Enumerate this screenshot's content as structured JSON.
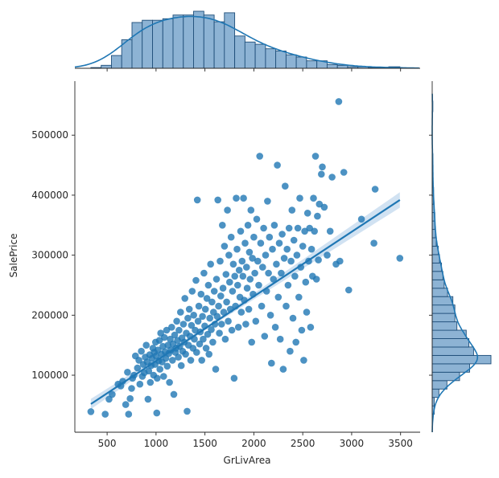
{
  "chart_data": {
    "type": "scatter",
    "xlabel": "GrLivArea",
    "ylabel": "SalePrice",
    "xlim": [
      170,
      3700
    ],
    "ylim": [
      5000,
      590000
    ],
    "x_ticks": [
      500,
      1000,
      1500,
      2000,
      2500,
      3000,
      3500
    ],
    "y_ticks": [
      100000,
      200000,
      300000,
      400000,
      500000
    ],
    "x_tick_labels": [
      "500",
      "1000",
      "1500",
      "2000",
      "2500",
      "3000",
      "3500"
    ],
    "y_tick_labels": [
      "100000",
      "200000",
      "300000",
      "400000",
      "500000"
    ],
    "colors": {
      "points": "#1f77b4",
      "hist_fill": "#8db3d4",
      "hist_edge": "#1f4e79",
      "band": "#c6dbef"
    },
    "regression_line": {
      "x": [
        334,
        3493
      ],
      "y": [
        52000,
        392000
      ]
    },
    "grid": false,
    "legend": "none",
    "x_hist": {
      "bin_edges": [
        334,
        439,
        544,
        649,
        754,
        859,
        964,
        1069,
        1174,
        1279,
        1384,
        1489,
        1594,
        1699,
        1804,
        1909,
        2014,
        2119,
        2224,
        2329,
        2434,
        2539,
        2644,
        2749,
        2854,
        2959,
        3064,
        3169,
        3274,
        3379,
        3493
      ],
      "counts": [
        1,
        4,
        17,
        38,
        61,
        64,
        64,
        66,
        71,
        71,
        76,
        71,
        62,
        74,
        43,
        35,
        32,
        26,
        23,
        18,
        15,
        10,
        10,
        5,
        4,
        2,
        2,
        1,
        1,
        2
      ]
    },
    "y_hist": {
      "bin_edges": [
        34900,
        49000,
        63000,
        77000,
        91000,
        105000,
        119000,
        133000,
        147000,
        161000,
        175000,
        189000,
        203000,
        217000,
        231000,
        245000,
        259000,
        273000,
        287000,
        301000,
        315000,
        329000,
        343000,
        357000,
        371000,
        385000,
        399000,
        413000,
        427000,
        441000,
        455000,
        469000,
        483000,
        497000,
        511000,
        525000,
        539000,
        557000
      ],
      "counts": [
        3,
        3,
        10,
        22,
        41,
        56,
        88,
        62,
        55,
        51,
        37,
        34,
        34,
        31,
        23,
        18,
        16,
        14,
        11,
        9,
        6,
        5,
        4,
        4,
        3,
        2,
        2,
        1,
        1,
        1,
        1,
        0,
        0,
        0,
        0,
        0,
        1
      ]
    },
    "points": [
      [
        334,
        39300
      ],
      [
        480,
        35000
      ],
      [
        520,
        60000
      ],
      [
        552,
        68000
      ],
      [
        612,
        85000
      ],
      [
        640,
        82000
      ],
      [
        660,
        90000
      ],
      [
        690,
        51000
      ],
      [
        708,
        105000
      ],
      [
        720,
        35000
      ],
      [
        735,
        61000
      ],
      [
        750,
        78000
      ],
      [
        760,
        95000
      ],
      [
        775,
        100000
      ],
      [
        790,
        132000
      ],
      [
        810,
        112000
      ],
      [
        825,
        125000
      ],
      [
        835,
        85000
      ],
      [
        850,
        140000
      ],
      [
        860,
        98000
      ],
      [
        870,
        118000
      ],
      [
        880,
        104000
      ],
      [
        890,
        130000
      ],
      [
        900,
        150000
      ],
      [
        910,
        122000
      ],
      [
        918,
        60000
      ],
      [
        925,
        107000
      ],
      [
        935,
        134000
      ],
      [
        942,
        88000
      ],
      [
        950,
        116000
      ],
      [
        960,
        128000
      ],
      [
        968,
        145000
      ],
      [
        975,
        100000
      ],
      [
        982,
        138000
      ],
      [
        990,
        118000
      ],
      [
        995,
        155000
      ],
      [
        1000,
        132000
      ],
      [
        1008,
        37000
      ],
      [
        1012,
        95000
      ],
      [
        1020,
        142000
      ],
      [
        1028,
        124000
      ],
      [
        1035,
        158000
      ],
      [
        1040,
        110000
      ],
      [
        1048,
        170000
      ],
      [
        1055,
        135000
      ],
      [
        1062,
        122000
      ],
      [
        1070,
        148000
      ],
      [
        1078,
        98000
      ],
      [
        1085,
        163000
      ],
      [
        1092,
        139000
      ],
      [
        1100,
        128000
      ],
      [
        1108,
        175000
      ],
      [
        1115,
        115000
      ],
      [
        1122,
        150000
      ],
      [
        1130,
        136000
      ],
      [
        1138,
        88000
      ],
      [
        1145,
        160000
      ],
      [
        1152,
        142000
      ],
      [
        1160,
        180000
      ],
      [
        1168,
        125000
      ],
      [
        1175,
        152000
      ],
      [
        1182,
        68000
      ],
      [
        1190,
        167000
      ],
      [
        1198,
        138000
      ],
      [
        1205,
        145000
      ],
      [
        1212,
        190000
      ],
      [
        1220,
        158000
      ],
      [
        1228,
        130000
      ],
      [
        1235,
        175000
      ],
      [
        1242,
        148000
      ],
      [
        1250,
        205000
      ],
      [
        1258,
        116000
      ],
      [
        1265,
        162000
      ],
      [
        1272,
        140000
      ],
      [
        1280,
        185000
      ],
      [
        1288,
        155000
      ],
      [
        1295,
        228000
      ],
      [
        1302,
        135000
      ],
      [
        1310,
        170000
      ],
      [
        1318,
        40000
      ],
      [
        1325,
        195000
      ],
      [
        1332,
        150000
      ],
      [
        1340,
        210000
      ],
      [
        1348,
        165000
      ],
      [
        1355,
        125000
      ],
      [
        1362,
        183000
      ],
      [
        1370,
        240000
      ],
      [
        1378,
        145000
      ],
      [
        1385,
        200000
      ],
      [
        1392,
        160000
      ],
      [
        1400,
        175000
      ],
      [
        1408,
        258000
      ],
      [
        1415,
        138000
      ],
      [
        1422,
        392000
      ],
      [
        1430,
        190000
      ],
      [
        1438,
        215000
      ],
      [
        1445,
        152000
      ],
      [
        1452,
        172000
      ],
      [
        1460,
        235000
      ],
      [
        1468,
        125000
      ],
      [
        1475,
        198000
      ],
      [
        1482,
        160000
      ],
      [
        1490,
        270000
      ],
      [
        1498,
        182000
      ],
      [
        1505,
        210000
      ],
      [
        1512,
        145000
      ],
      [
        1520,
        228000
      ],
      [
        1528,
        168000
      ],
      [
        1535,
        250000
      ],
      [
        1542,
        135000
      ],
      [
        1550,
        195000
      ],
      [
        1558,
        285000
      ],
      [
        1565,
        176000
      ],
      [
        1572,
        222000
      ],
      [
        1580,
        155000
      ],
      [
        1588,
        205000
      ],
      [
        1595,
        240000
      ],
      [
        1602,
        185000
      ],
      [
        1610,
        110000
      ],
      [
        1618,
        260000
      ],
      [
        1625,
        198000
      ],
      [
        1632,
        392000
      ],
      [
        1640,
        215000
      ],
      [
        1648,
        170000
      ],
      [
        1655,
        290000
      ],
      [
        1662,
        232000
      ],
      [
        1670,
        185000
      ],
      [
        1678,
        350000
      ],
      [
        1685,
        245000
      ],
      [
        1692,
        205000
      ],
      [
        1700,
        315000
      ],
      [
        1708,
        160000
      ],
      [
        1715,
        268000
      ],
      [
        1722,
        222000
      ],
      [
        1730,
        375000
      ],
      [
        1738,
        190000
      ],
      [
        1745,
        300000
      ],
      [
        1752,
        255000
      ],
      [
        1760,
        210000
      ],
      [
        1768,
        330000
      ],
      [
        1775,
        175000
      ],
      [
        1782,
        240000
      ],
      [
        1790,
        285000
      ],
      [
        1798,
        95000
      ],
      [
        1805,
        265000
      ],
      [
        1812,
        215000
      ],
      [
        1820,
        395000
      ],
      [
        1828,
        310000
      ],
      [
        1835,
        250000
      ],
      [
        1842,
        180000
      ],
      [
        1850,
        275000
      ],
      [
        1858,
        230000
      ],
      [
        1865,
        340000
      ],
      [
        1872,
        205000
      ],
      [
        1880,
        290000
      ],
      [
        1888,
        265000
      ],
      [
        1895,
        395000
      ],
      [
        1902,
        225000
      ],
      [
        1910,
        320000
      ],
      [
        1918,
        185000
      ],
      [
        1925,
        280000
      ],
      [
        1932,
        245000
      ],
      [
        1940,
        350000
      ],
      [
        1948,
        210000
      ],
      [
        1955,
        305000
      ],
      [
        1962,
        260000
      ],
      [
        1970,
        375000
      ],
      [
        1978,
        155000
      ],
      [
        1985,
        295000
      ],
      [
        1992,
        235000
      ],
      [
        2000,
        330000
      ],
      [
        2010,
        270000
      ],
      [
        2020,
        190000
      ],
      [
        2030,
        360000
      ],
      [
        2040,
        290000
      ],
      [
        2050,
        250000
      ],
      [
        2060,
        465000
      ],
      [
        2070,
        320000
      ],
      [
        2080,
        215000
      ],
      [
        2090,
        280000
      ],
      [
        2100,
        345000
      ],
      [
        2110,
        165000
      ],
      [
        2120,
        300000
      ],
      [
        2130,
        240000
      ],
      [
        2140,
        390000
      ],
      [
        2150,
        270000
      ],
      [
        2160,
        330000
      ],
      [
        2170,
        200000
      ],
      [
        2180,
        120000
      ],
      [
        2190,
        310000
      ],
      [
        2200,
        260000
      ],
      [
        2210,
        350000
      ],
      [
        2220,
        180000
      ],
      [
        2230,
        285000
      ],
      [
        2240,
        450000
      ],
      [
        2250,
        230000
      ],
      [
        2260,
        320000
      ],
      [
        2270,
        160000
      ],
      [
        2280,
        270000
      ],
      [
        2290,
        335000
      ],
      [
        2300,
        110000
      ],
      [
        2310,
        295000
      ],
      [
        2320,
        415000
      ],
      [
        2330,
        215000
      ],
      [
        2340,
        310000
      ],
      [
        2350,
        250000
      ],
      [
        2360,
        345000
      ],
      [
        2370,
        140000
      ],
      [
        2380,
        290000
      ],
      [
        2390,
        375000
      ],
      [
        2400,
        195000
      ],
      [
        2410,
        325000
      ],
      [
        2420,
        265000
      ],
      [
        2430,
        155000
      ],
      [
        2440,
        300000
      ],
      [
        2450,
        345000
      ],
      [
        2460,
        230000
      ],
      [
        2470,
        395000
      ],
      [
        2480,
        280000
      ],
      [
        2490,
        175000
      ],
      [
        2500,
        315000
      ],
      [
        2510,
        125000
      ],
      [
        2520,
        340000
      ],
      [
        2530,
        255000
      ],
      [
        2540,
        205000
      ],
      [
        2550,
        370000
      ],
      [
        2560,
        290000
      ],
      [
        2570,
        345000
      ],
      [
        2580,
        180000
      ],
      [
        2590,
        310000
      ],
      [
        2600,
        265000
      ],
      [
        2610,
        395000
      ],
      [
        2620,
        340000
      ],
      [
        2630,
        465000
      ],
      [
        2640,
        260000
      ],
      [
        2650,
        365000
      ],
      [
        2660,
        292000
      ],
      [
        2670,
        385000
      ],
      [
        2690,
        435000
      ],
      [
        2700,
        447000
      ],
      [
        2720,
        380000
      ],
      [
        2750,
        300000
      ],
      [
        2780,
        340000
      ],
      [
        2800,
        430000
      ],
      [
        2840,
        285000
      ],
      [
        2868,
        556000
      ],
      [
        2880,
        290000
      ],
      [
        2920,
        438000
      ],
      [
        2970,
        242000
      ],
      [
        3100,
        360000
      ],
      [
        3228,
        320000
      ],
      [
        3240,
        410000
      ],
      [
        3493,
        295000
      ]
    ]
  }
}
